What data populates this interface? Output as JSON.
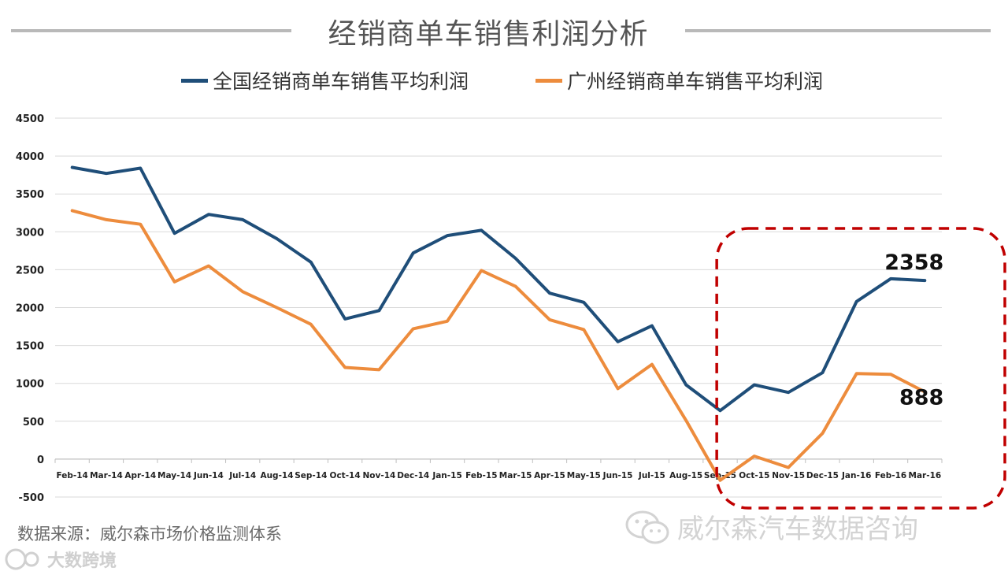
{
  "title": "经销商单车销售利润分析",
  "source": "数据来源：威尔森市场价格监测体系",
  "brand_logo_text": "大数跨境",
  "watermark_text": "威尔森汽车数据咨询",
  "colors": {
    "national": "#1f4e79",
    "guangzhou": "#ed8c3d",
    "highlight": "#c00000",
    "grid": "#d9d9d9"
  },
  "chart_data": {
    "type": "line",
    "title": "经销商单车销售利润分析",
    "legend_position": "top",
    "grid": true,
    "ylim": [
      -500,
      4500
    ],
    "yticks": [
      -500,
      0,
      500,
      1000,
      1500,
      2000,
      2500,
      3000,
      3500,
      4000,
      4500
    ],
    "categories": [
      "Feb-14",
      "Mar-14",
      "Apr-14",
      "May-14",
      "Jun-14",
      "Jul-14",
      "Aug-14",
      "Sep-14",
      "Oct-14",
      "Nov-14",
      "Dec-14",
      "Jan-15",
      "Feb-15",
      "Mar-15",
      "Apr-15",
      "May-15",
      "Jun-15",
      "Jul-15",
      "Aug-15",
      "Sep-15",
      "Oct-15",
      "Nov-15",
      "Dec-15",
      "Jan-16",
      "Feb-16",
      "Mar-16"
    ],
    "series": [
      {
        "name": "全国经销商单车销售平均利润",
        "values": [
          3850,
          3770,
          3840,
          2980,
          3230,
          3160,
          2910,
          2600,
          1850,
          1960,
          2720,
          2950,
          3020,
          2650,
          2190,
          2070,
          1550,
          1760,
          980,
          640,
          980,
          880,
          1140,
          2080,
          2380,
          2358
        ]
      },
      {
        "name": "广州经销商单车销售平均利润",
        "values": [
          3280,
          3160,
          3100,
          2340,
          2550,
          2210,
          2000,
          1780,
          1210,
          1180,
          1720,
          1820,
          2490,
          2280,
          1840,
          1710,
          930,
          1250,
          510,
          -280,
          40,
          -110,
          340,
          1130,
          1120,
          888
        ]
      }
    ],
    "annotations": [
      {
        "text": "2358",
        "series": 0,
        "category": "Mar-16"
      },
      {
        "text": "888",
        "series": 1,
        "category": "Mar-16"
      }
    ],
    "highlight_range": [
      "Oct-15",
      "Mar-16"
    ]
  }
}
